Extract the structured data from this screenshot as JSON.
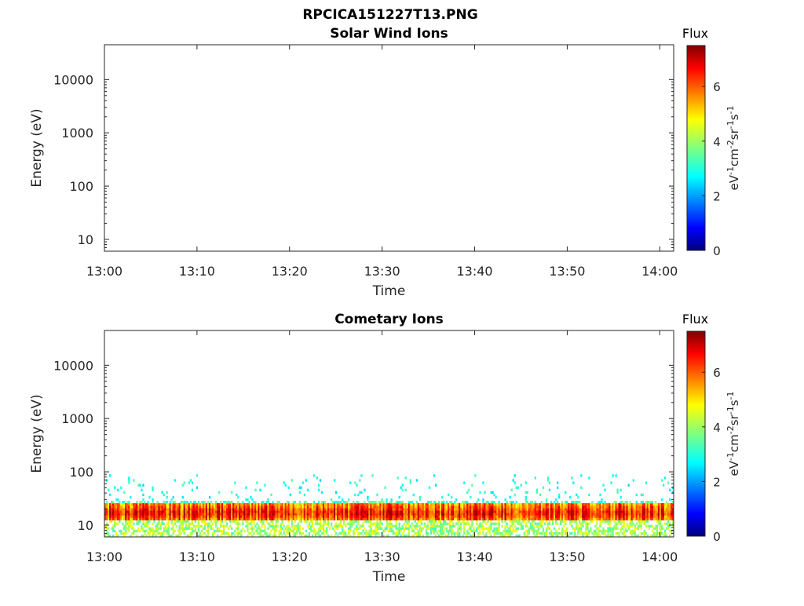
{
  "title": "RPCICA151227T13.PNG",
  "chart_data": [
    {
      "type": "heatmap",
      "title": "Solar Wind Ions",
      "xlabel": "Time",
      "ylabel": "Energy (eV)",
      "x_ticks": [
        "13:00",
        "13:10",
        "13:20",
        "13:30",
        "13:40",
        "13:50",
        "14:00"
      ],
      "xlim": [
        "13:00",
        "14:01:30"
      ],
      "y_scale": "log",
      "y_ticks": [
        10,
        100,
        1000,
        10000
      ],
      "y_tick_labels": [
        "10",
        "100",
        "1000",
        "10000"
      ],
      "ylim": [
        6,
        45000
      ],
      "colorbar": {
        "title": "Flux",
        "label": "eV-1cm-2sr-1s-1",
        "ticks": [
          "0",
          "2",
          "4",
          "6"
        ],
        "range": [
          0,
          7.5
        ],
        "colormap": "jet"
      },
      "data": "empty"
    },
    {
      "type": "heatmap",
      "title": "Cometary Ions",
      "xlabel": "Time",
      "ylabel": "Energy (eV)",
      "x_ticks": [
        "13:00",
        "13:10",
        "13:20",
        "13:30",
        "13:40",
        "13:50",
        "14:00"
      ],
      "xlim": [
        "13:00",
        "14:01:30"
      ],
      "y_scale": "log",
      "y_ticks": [
        10,
        100,
        1000,
        10000
      ],
      "y_tick_labels": [
        "10",
        "100",
        "1000",
        "10000"
      ],
      "ylim": [
        6,
        45000
      ],
      "colorbar": {
        "title": "Flux",
        "label": "eV-1cm-2sr-1s-1",
        "ticks": [
          "0",
          "2",
          "4",
          "6"
        ],
        "range": [
          0,
          7.5
        ],
        "colormap": "jet"
      },
      "band": {
        "core_energy_range_eV": [
          12,
          26
        ],
        "peak_energy_eV": 17,
        "peak_flux": 6.5,
        "sparse_energy_range_eV": [
          28,
          90
        ],
        "sparse_flux": [
          2.5,
          3.5
        ]
      }
    }
  ]
}
